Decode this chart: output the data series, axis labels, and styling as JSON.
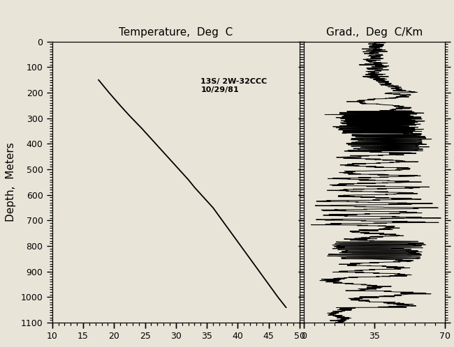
{
  "title_temp": "Temperature,  Deg  C",
  "title_grad": "Grad.,  Deg  C/Km",
  "ylabel": "Depth,  Meters",
  "annotation": "13S/ 2W-32CCC\n10/29/81",
  "temp_xlim": [
    10,
    50
  ],
  "temp_xticks": [
    10,
    15,
    20,
    25,
    30,
    35,
    40,
    45,
    50
  ],
  "grad_xlim": [
    0,
    70
  ],
  "grad_xticks": [
    0,
    35,
    70
  ],
  "ylim": [
    1100,
    0
  ],
  "yticks": [
    0,
    100,
    200,
    300,
    400,
    500,
    600,
    700,
    800,
    900,
    1000,
    1100
  ],
  "bg_color": "#e8e4d8",
  "line_color": "black",
  "temp_data_depth": [
    150,
    200,
    250,
    290,
    340,
    380,
    420,
    460,
    500,
    540,
    570,
    610,
    650,
    700,
    750,
    800,
    850,
    900,
    950,
    1000,
    1040
  ],
  "temp_data_temp": [
    17.5,
    19.2,
    21.0,
    22.5,
    24.5,
    26.0,
    27.5,
    29.0,
    30.5,
    32.0,
    33.0,
    34.5,
    36.0,
    37.5,
    39.0,
    40.5,
    42.0,
    43.5,
    45.0,
    46.5,
    47.8
  ]
}
